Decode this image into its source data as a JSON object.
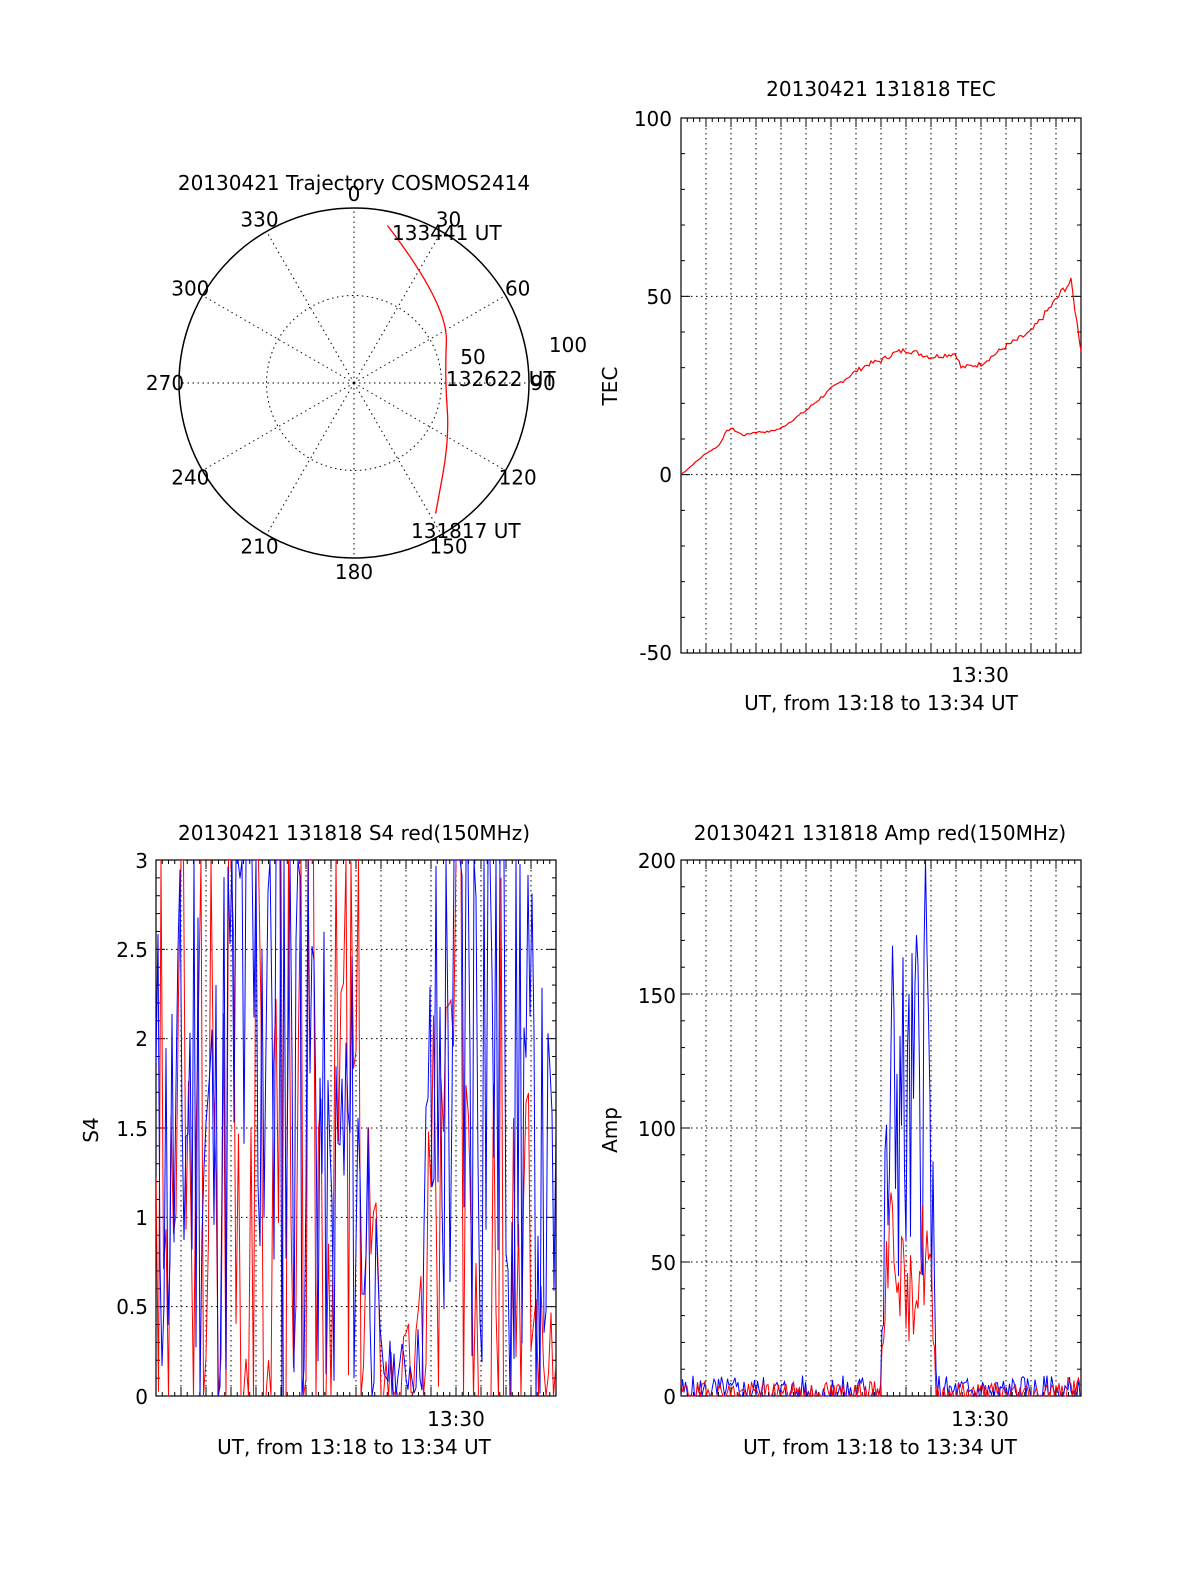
{
  "page": {
    "background": "#ffffff"
  },
  "colors": {
    "red": "#ff0000",
    "blue": "#0000ff",
    "axis": "#000000"
  },
  "polar": {
    "title": "20130421 Trajectory COSMOS2414",
    "azimuth_labels": [
      "0",
      "30",
      "60",
      "90",
      "120",
      "150",
      "180",
      "210",
      "240",
      "270",
      "300",
      "330"
    ],
    "radius_labels": [
      "50",
      "100"
    ],
    "point_labels": [
      "133441 UT",
      "132622 UT",
      "131817 UT"
    ]
  },
  "tec": {
    "title": "20130421 131818 TEC",
    "ylabel": "TEC",
    "xlabel": "UT, from 13:18 to 13:34 UT",
    "xtick": "13:30",
    "yticks": [
      "100",
      "50",
      "0",
      "-50"
    ]
  },
  "s4": {
    "title": "20130421 131818 S4 red(150MHz)",
    "ylabel": "S4",
    "xlabel": "UT, from 13:18 to 13:34 UT",
    "xtick": "13:30",
    "yticks": [
      "3",
      "2.5",
      "2",
      "1.5",
      "1",
      "0.5",
      "0"
    ]
  },
  "amp": {
    "title": "20130421 131818 Amp red(150MHz)",
    "ylabel": "Amp",
    "xlabel": "UT, from 13:18 to 13:34 UT",
    "xtick": "13:30",
    "yticks": [
      "200",
      "150",
      "100",
      "50",
      "0"
    ]
  },
  "chart_data": [
    {
      "type": "scatter",
      "title": "20130421 Trajectory COSMOS2414",
      "projection": "polar",
      "azimuth_unit": "deg",
      "radius_range": [
        0,
        100
      ],
      "points": [
        {
          "label": "133441 UT",
          "azimuth": 12,
          "radius": 92
        },
        {
          "azimuth": 50,
          "radius": 70
        },
        {
          "label": "132622 UT",
          "azimuth": 87,
          "radius": 52
        },
        {
          "azimuth": 120,
          "radius": 63
        },
        {
          "label": "131817 UT",
          "azimuth": 148,
          "radius": 88
        }
      ],
      "color": "red"
    },
    {
      "type": "line",
      "title": "20130421 131818 TEC",
      "xlabel": "UT, from 13:18 to 13:34 UT",
      "ylabel": "TEC",
      "xlim": [
        0,
        16
      ],
      "ylim": [
        -50,
        100
      ],
      "grid": true,
      "x_minutes_since_1318": [
        0,
        0.5,
        1,
        1.5,
        1.8,
        2.0,
        2.5,
        3,
        3.5,
        4,
        5,
        6,
        7,
        7.5,
        8,
        8.5,
        9,
        10,
        11,
        11.2,
        12,
        13,
        14,
        15,
        15.3,
        15.6,
        16
      ],
      "y": [
        0,
        3,
        6,
        8,
        12,
        13,
        11,
        12,
        12,
        13,
        18,
        24,
        29,
        31,
        32,
        34,
        35,
        33,
        34,
        30,
        31,
        36,
        40,
        49,
        52,
        54,
        35
      ],
      "color": "red"
    },
    {
      "type": "line",
      "title": "20130421 131818 S4 red(150MHz)",
      "xlabel": "UT, from 13:18 to 13:34 UT",
      "ylabel": "S4",
      "xlim": [
        0,
        16
      ],
      "ylim": [
        0,
        3
      ],
      "grid": true,
      "series": [
        {
          "name": "blue",
          "color": "blue",
          "x": [
            0,
            0.5,
            1,
            1.5,
            2,
            2.5,
            3,
            3.5,
            4,
            4.5,
            5,
            5.5,
            6,
            6.5,
            7,
            7.5,
            8,
            8.5,
            9,
            9.5,
            10,
            10.5,
            11,
            11.5,
            12,
            12.5,
            13,
            13.5,
            14,
            14.5,
            15,
            15.5,
            16
          ],
          "y": [
            1.4,
            1.2,
            1.5,
            1.8,
            1.4,
            1.3,
            2.0,
            2.5,
            2.2,
            2.8,
            2.4,
            3.0,
            2.0,
            1.6,
            0.8,
            1.4,
            1.2,
            1.0,
            0.15,
            0.15,
            0.15,
            0.2,
            1.5,
            1.7,
            2.5,
            3.0,
            2.8,
            3.0,
            2.5,
            2.0,
            1.4,
            1.1,
            1.0
          ]
        },
        {
          "name": "red",
          "color": "red",
          "x": [
            0,
            0.5,
            1,
            1.5,
            2,
            2.5,
            3,
            3.5,
            4,
            4.5,
            5,
            5.5,
            6,
            6.5,
            7,
            7.5,
            8,
            8.5,
            9,
            9.5,
            10,
            10.5,
            11,
            11.5,
            12,
            12.5,
            13,
            13.5,
            14,
            14.5,
            15,
            15.5,
            16
          ],
          "y": [
            3.0,
            0.0,
            3.0,
            0.0,
            3.0,
            0.0,
            3.0,
            0.0,
            3.0,
            0.0,
            3.0,
            0.0,
            2.0,
            1.5,
            1.2,
            1.6,
            1.3,
            0.9,
            0.15,
            0.12,
            0.15,
            0.2,
            1.2,
            0.9,
            2.0,
            2.8,
            2.6,
            2.4,
            1.8,
            1.2,
            0.6,
            0.2,
            0.15
          ]
        }
      ]
    },
    {
      "type": "line",
      "title": "20130421 131818 Amp red(150MHz)",
      "xlabel": "UT, from 13:18 to 13:34 UT",
      "ylabel": "Amp",
      "xlim": [
        0,
        16
      ],
      "ylim": [
        0,
        200
      ],
      "grid": true,
      "series": [
        {
          "name": "blue",
          "color": "blue",
          "x": [
            0,
            2,
            4,
            6,
            7.9,
            8.0,
            8.2,
            8.6,
            9.0,
            9.4,
            9.8,
            10.0,
            10.2,
            10.3,
            10.5,
            12,
            14,
            15.5,
            16
          ],
          "y": [
            1,
            1,
            1,
            1,
            2,
            3,
            75,
            125,
            95,
            110,
            150,
            85,
            5,
            2,
            1,
            1,
            1,
            1,
            1
          ]
        },
        {
          "name": "red",
          "color": "red",
          "x": [
            0,
            2,
            4,
            6,
            7.9,
            8.0,
            8.2,
            8.6,
            9.0,
            9.4,
            9.8,
            10.0,
            10.2,
            10.3,
            10.5,
            12,
            14,
            15.4,
            15.5,
            16
          ],
          "y": [
            1,
            1,
            1,
            1,
            1,
            2,
            55,
            65,
            30,
            45,
            55,
            40,
            3,
            1,
            1,
            1,
            1,
            1,
            3,
            3
          ]
        }
      ]
    }
  ]
}
